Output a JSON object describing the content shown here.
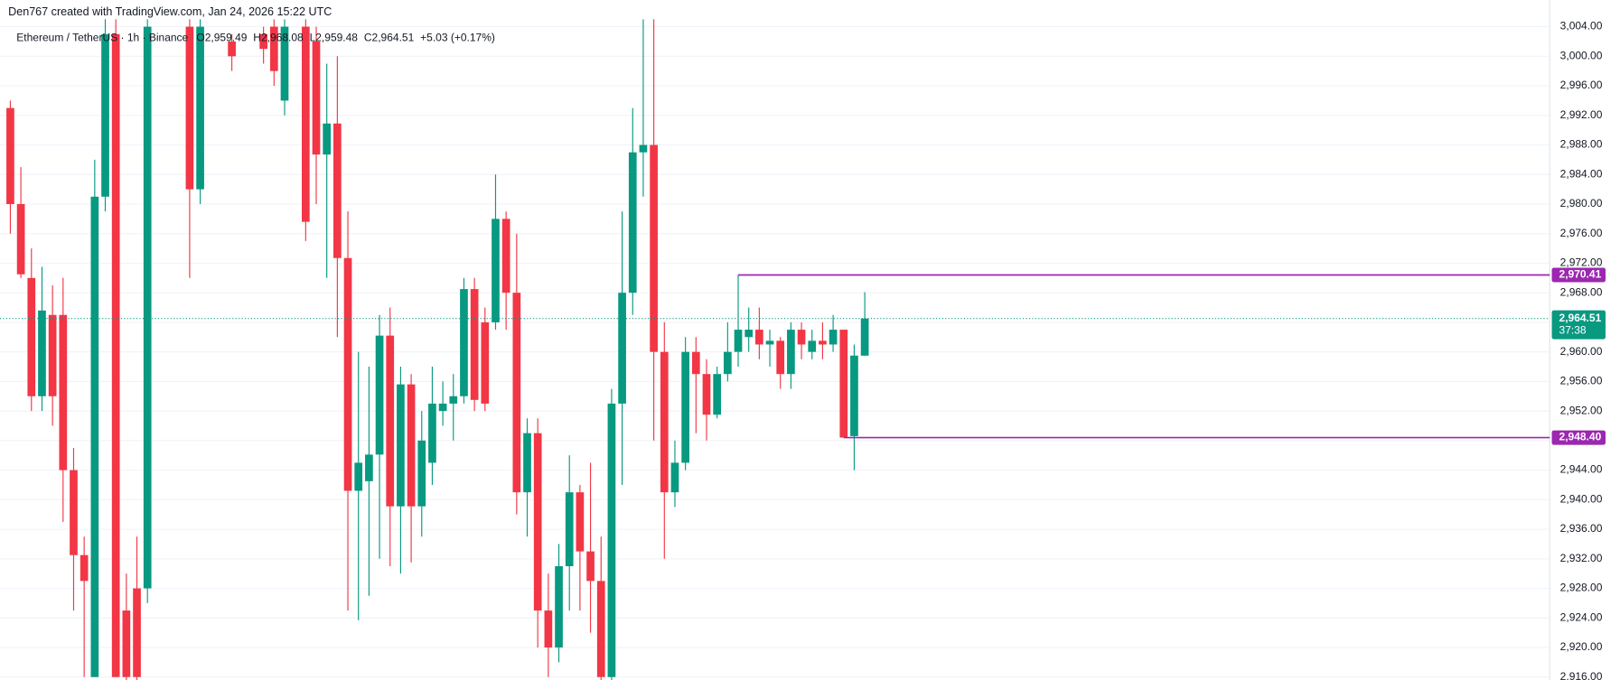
{
  "chart_data": {
    "type": "candlestick",
    "credit": "Den767 created with TradingView.com, Jan 24, 2026 15:22 UTC",
    "title": "Ethereum / TetherUS · 1h · Binance",
    "ohlc_text": {
      "open": "O2,959.49",
      "high": "H2,968.08",
      "low": "L2,959.48",
      "close": "C2,964.51",
      "change": "+5.03 (+0.17%)"
    },
    "up_color": "#089981",
    "down_color": "#f23645",
    "open": [
      2993,
      2980,
      2970,
      2954,
      2965,
      2965,
      2944,
      2932.5,
      2916,
      2981,
      3003,
      2925,
      2928,
      2928,
      null,
      null,
      null,
      3004,
      2982,
      null,
      null,
      3002,
      null,
      null,
      3003,
      3004,
      2994,
      null,
      3004,
      3002,
      2986.7,
      2990.9,
      2972.7,
      2941.2,
      2942.5,
      2946.1,
      2962.2,
      2939.1,
      2955.6,
      2939.1,
      2945,
      2952,
      2953,
      2954,
      2968.5,
      2964,
      2964,
      2978,
      2968,
      2941,
      2949,
      2925,
      2920,
      2931,
      2941,
      2933,
      2929,
      2916,
      2953,
      2968,
      2987,
      2988,
      2960,
      2941,
      2945,
      2960,
      2957,
      2951.5,
      2957,
      2960,
      2962,
      2963,
      2961,
      2961.5,
      2957,
      2963,
      2960,
      2961.5,
      2961,
      2963,
      2948.6,
      2959.49
    ],
    "high": [
      2994,
      2985,
      2974,
      2971.5,
      2969,
      2970,
      2947,
      2935,
      2986,
      3005,
      3005,
      2930,
      2935,
      3005,
      null,
      null,
      null,
      3005,
      3005,
      null,
      null,
      3003,
      null,
      null,
      3004,
      3005,
      3005,
      null,
      3005,
      3004,
      2999,
      3000,
      2979,
      2960,
      2958,
      2965,
      2966,
      2958,
      2957,
      2952,
      2958,
      2956,
      2957,
      2970,
      2970,
      2966,
      2984,
      2979,
      2976,
      2951,
      2951,
      2930,
      2934,
      2946,
      2942,
      2945,
      2935,
      2955,
      2979,
      2993,
      3005,
      3005,
      2964,
      2948,
      2962,
      2962,
      2959,
      2958,
      2964,
      2970.4,
      2966,
      2966,
      2963,
      2962,
      2964,
      2964,
      2963,
      2964,
      2965,
      2963,
      2961,
      2968.08
    ],
    "low": [
      2976,
      2970,
      2952,
      2952,
      2950,
      2937,
      2925,
      2916,
      2916,
      2979,
      2916,
      2914,
      2914,
      2926,
      null,
      null,
      null,
      2970,
      2980,
      null,
      null,
      2998,
      null,
      null,
      2999,
      2996,
      2992,
      null,
      2975,
      2980,
      2970,
      2962,
      2925,
      2923.7,
      2927,
      2932,
      2931,
      2930,
      2931.5,
      2935,
      2942,
      2950,
      2948,
      2953,
      2952,
      2952,
      2963,
      2963,
      2938,
      2935,
      2920,
      2916,
      2918,
      2925,
      2925,
      2922,
      2914,
      2915,
      2942,
      2965,
      2981,
      2948,
      2932,
      2939,
      2944,
      2949,
      2948,
      2951,
      2956,
      2958,
      2960,
      2959,
      2958,
      2955,
      2955,
      2959,
      2959,
      2959,
      2960,
      2948.4,
      2944,
      2959.48
    ],
    "close": [
      2980,
      2970.5,
      2954,
      2965.6,
      2954,
      2944,
      2932.5,
      2929,
      2981,
      3003,
      2916,
      2916,
      2916,
      3004,
      null,
      null,
      null,
      2982,
      3004,
      null,
      null,
      3000,
      null,
      null,
      3001,
      2998,
      3004,
      null,
      2977.6,
      2986.7,
      2990.9,
      2972.7,
      2941.2,
      2945,
      2946.1,
      2962.2,
      2939.1,
      2955.6,
      2939.1,
      2948,
      2953,
      2953,
      2954,
      2968.5,
      2953.5,
      2953,
      2978,
      2968,
      2941,
      2949,
      2925,
      2920,
      2931,
      2941,
      2933,
      2929,
      2916,
      2953,
      2968,
      2987,
      2988,
      2960,
      2941,
      2945,
      2960,
      2957,
      2951.5,
      2957,
      2960,
      2963,
      2963,
      2961,
      2961.5,
      2957,
      2963,
      2961,
      2961.5,
      2961,
      2963,
      2948.4,
      2959.5,
      2964.51
    ],
    "levels": [
      {
        "start": 69,
        "price": {
          "value": 2970.41,
          "label": "2,970.41"
        },
        "color": "#9c27b0"
      },
      {
        "start": 79,
        "price": {
          "value": 2948.4,
          "label": "2,948.40"
        },
        "color": "#9c27b0"
      }
    ],
    "last_price": {
      "value": 2964.51,
      "label": "2,964.51"
    },
    "countdown": "37:38",
    "ylim": [
      2915.6,
      3005.1
    ],
    "yticks": [
      {
        "value": 2916,
        "label": "2,916.00"
      },
      {
        "value": 2920,
        "label": "2,920.00"
      },
      {
        "value": 2924,
        "label": "2,924.00"
      },
      {
        "value": 2928,
        "label": "2,928.00"
      },
      {
        "value": 2932,
        "label": "2,932.00"
      },
      {
        "value": 2936,
        "label": "2,936.00"
      },
      {
        "value": 2940,
        "label": "2,940.00"
      },
      {
        "value": 2944,
        "label": "2,944.00"
      },
      {
        "value": 2948,
        "label": "2,948.00"
      },
      {
        "value": 2952,
        "label": "2,952.00"
      },
      {
        "value": 2956,
        "label": "2,956.00"
      },
      {
        "value": 2960,
        "label": "2,960.00"
      },
      {
        "value": 2964,
        "label": "2,964.00"
      },
      {
        "value": 2968,
        "label": "2,968.00"
      },
      {
        "value": 2972,
        "label": "2,972.00"
      },
      {
        "value": 2976,
        "label": "2,976.00"
      },
      {
        "value": 2980,
        "label": "2,980.00"
      },
      {
        "value": 2984,
        "label": "2,984.00"
      },
      {
        "value": 2988,
        "label": "2,988.00"
      },
      {
        "value": 2992,
        "label": "2,992.00"
      },
      {
        "value": 2996,
        "label": "2,996.00"
      },
      {
        "value": 3000,
        "label": "3,000.00"
      },
      {
        "value": 3004,
        "label": "3,004.00"
      }
    ],
    "grid": true
  }
}
